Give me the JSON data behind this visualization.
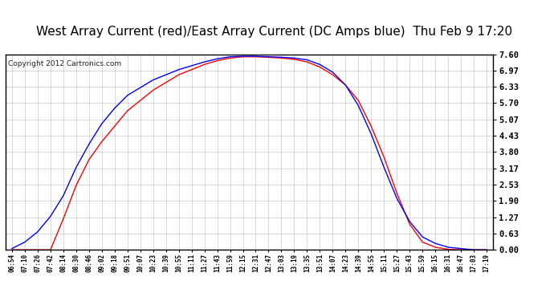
{
  "title": "West Array Current (red)/East Array Current (DC Amps blue)  Thu Feb 9 17:20",
  "copyright": "Copyright 2012 Cartronics.com",
  "yticks": [
    0.0,
    0.63,
    1.27,
    1.9,
    2.53,
    3.17,
    3.8,
    4.43,
    5.07,
    5.7,
    6.33,
    6.97,
    7.6
  ],
  "ylim": [
    0.0,
    7.6
  ],
  "xtick_labels": [
    "06:54",
    "07:10",
    "07:26",
    "07:42",
    "08:14",
    "08:30",
    "08:46",
    "09:02",
    "09:18",
    "09:51",
    "10:07",
    "10:23",
    "10:39",
    "10:55",
    "11:11",
    "11:27",
    "11:43",
    "11:59",
    "12:15",
    "12:31",
    "12:47",
    "13:03",
    "13:19",
    "13:35",
    "13:51",
    "14:07",
    "14:23",
    "14:39",
    "14:55",
    "15:11",
    "15:27",
    "15:43",
    "15:59",
    "16:15",
    "16:31",
    "16:47",
    "17:03",
    "17:19"
  ],
  "background_color": "#ffffff",
  "plot_bg_color": "#ffffff",
  "grid_color": "#bbbbbb",
  "red_color": "#ff0000",
  "blue_color": "#0000ff",
  "title_fontsize": 11,
  "copyright_fontsize": 6.5,
  "red_data": [
    0.0,
    0.0,
    0.0,
    0.0,
    1.2,
    2.5,
    3.5,
    4.2,
    4.8,
    5.4,
    5.8,
    6.2,
    6.5,
    6.8,
    7.0,
    7.2,
    7.35,
    7.45,
    7.5,
    7.5,
    7.48,
    7.45,
    7.4,
    7.3,
    7.1,
    6.8,
    6.4,
    5.8,
    4.8,
    3.6,
    2.2,
    1.0,
    0.3,
    0.1,
    0.02,
    0.0,
    0.0,
    0.0
  ],
  "blue_data": [
    0.05,
    0.3,
    0.7,
    1.3,
    2.1,
    3.2,
    4.1,
    4.9,
    5.5,
    6.0,
    6.3,
    6.6,
    6.8,
    7.0,
    7.15,
    7.3,
    7.42,
    7.5,
    7.52,
    7.52,
    7.5,
    7.48,
    7.45,
    7.38,
    7.2,
    6.9,
    6.4,
    5.6,
    4.5,
    3.2,
    2.0,
    1.1,
    0.5,
    0.25,
    0.1,
    0.05,
    0.0,
    0.0
  ]
}
